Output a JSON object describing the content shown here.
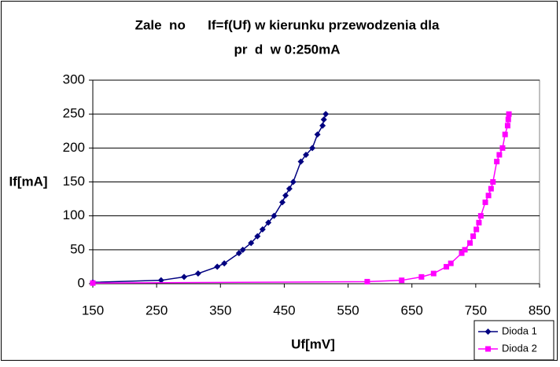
{
  "chart_data": {
    "type": "scatter-line",
    "title": [
      "Zale  no      If=f(Uf) w kierunku przewodzenia dla",
      "pr  d  w 0:250mA"
    ],
    "x_label": "Uf[mV]",
    "y_label": "If[mA]",
    "xlim": [
      150,
      850
    ],
    "xticks": [
      150,
      250,
      350,
      450,
      550,
      650,
      750,
      850
    ],
    "ylim": [
      0,
      300
    ],
    "yticks": [
      0,
      50,
      100,
      150,
      200,
      250,
      300
    ],
    "grid": true,
    "legend": "bottom-right",
    "series": [
      {
        "name": "Dioda 1",
        "color": "#000080",
        "marker": "diamond",
        "x": [
          150,
          257,
          293,
          315,
          345,
          356,
          379,
          385,
          398,
          408,
          416,
          425,
          434,
          447,
          452,
          458,
          464,
          476,
          484,
          494,
          502,
          510,
          512,
          515
        ],
        "values": [
          2,
          5,
          10,
          15,
          25,
          30,
          45,
          50,
          60,
          70,
          80,
          90,
          100,
          120,
          130,
          140,
          150,
          180,
          190,
          200,
          220,
          233,
          242,
          250
        ]
      },
      {
        "name": "Dioda 2",
        "color": "#ff00ff",
        "marker": "square",
        "x": [
          150,
          580,
          634,
          665,
          684,
          704,
          711,
          728,
          733,
          741,
          746,
          751,
          755,
          758,
          765,
          770,
          774,
          777,
          783,
          787,
          792,
          796,
          800,
          801,
          802
        ],
        "values": [
          1,
          3,
          5,
          10,
          15,
          25,
          30,
          45,
          50,
          60,
          70,
          80,
          90,
          100,
          120,
          130,
          140,
          150,
          180,
          190,
          200,
          220,
          233,
          242,
          250
        ]
      }
    ]
  }
}
